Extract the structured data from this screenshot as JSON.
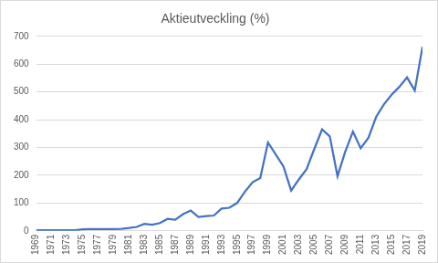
{
  "chart_data": {
    "type": "line",
    "title": "Aktieutveckling (%)",
    "categories": [
      "1969",
      null,
      "1971",
      null,
      "1973",
      null,
      "1975",
      null,
      "1977",
      null,
      "1979",
      null,
      "1981",
      null,
      "1983",
      null,
      "1985",
      null,
      "1987",
      null,
      "1989",
      null,
      "1991",
      null,
      "1993",
      null,
      "1995",
      null,
      "1997",
      null,
      "1999",
      null,
      "2001",
      null,
      "2003",
      null,
      "2005",
      null,
      "2007",
      null,
      "2009",
      null,
      "2011",
      null,
      "2013",
      null,
      "2015",
      null,
      "2017",
      null,
      "2019"
    ],
    "values": [
      2,
      2,
      2,
      2,
      2,
      2,
      5,
      6,
      6,
      6,
      6,
      7,
      10,
      14,
      25,
      22,
      28,
      43,
      40,
      60,
      73,
      50,
      53,
      55,
      80,
      83,
      100,
      140,
      175,
      190,
      318,
      275,
      232,
      145,
      185,
      222,
      295,
      365,
      340,
      197,
      285,
      357,
      297,
      335,
      410,
      455,
      490,
      518,
      552,
      505,
      662
    ],
    "color": "#4472c4",
    "ylim": [
      0,
      700
    ],
    "yticks": [
      0,
      100,
      200,
      300,
      400,
      500,
      600,
      700
    ],
    "grid": true
  }
}
